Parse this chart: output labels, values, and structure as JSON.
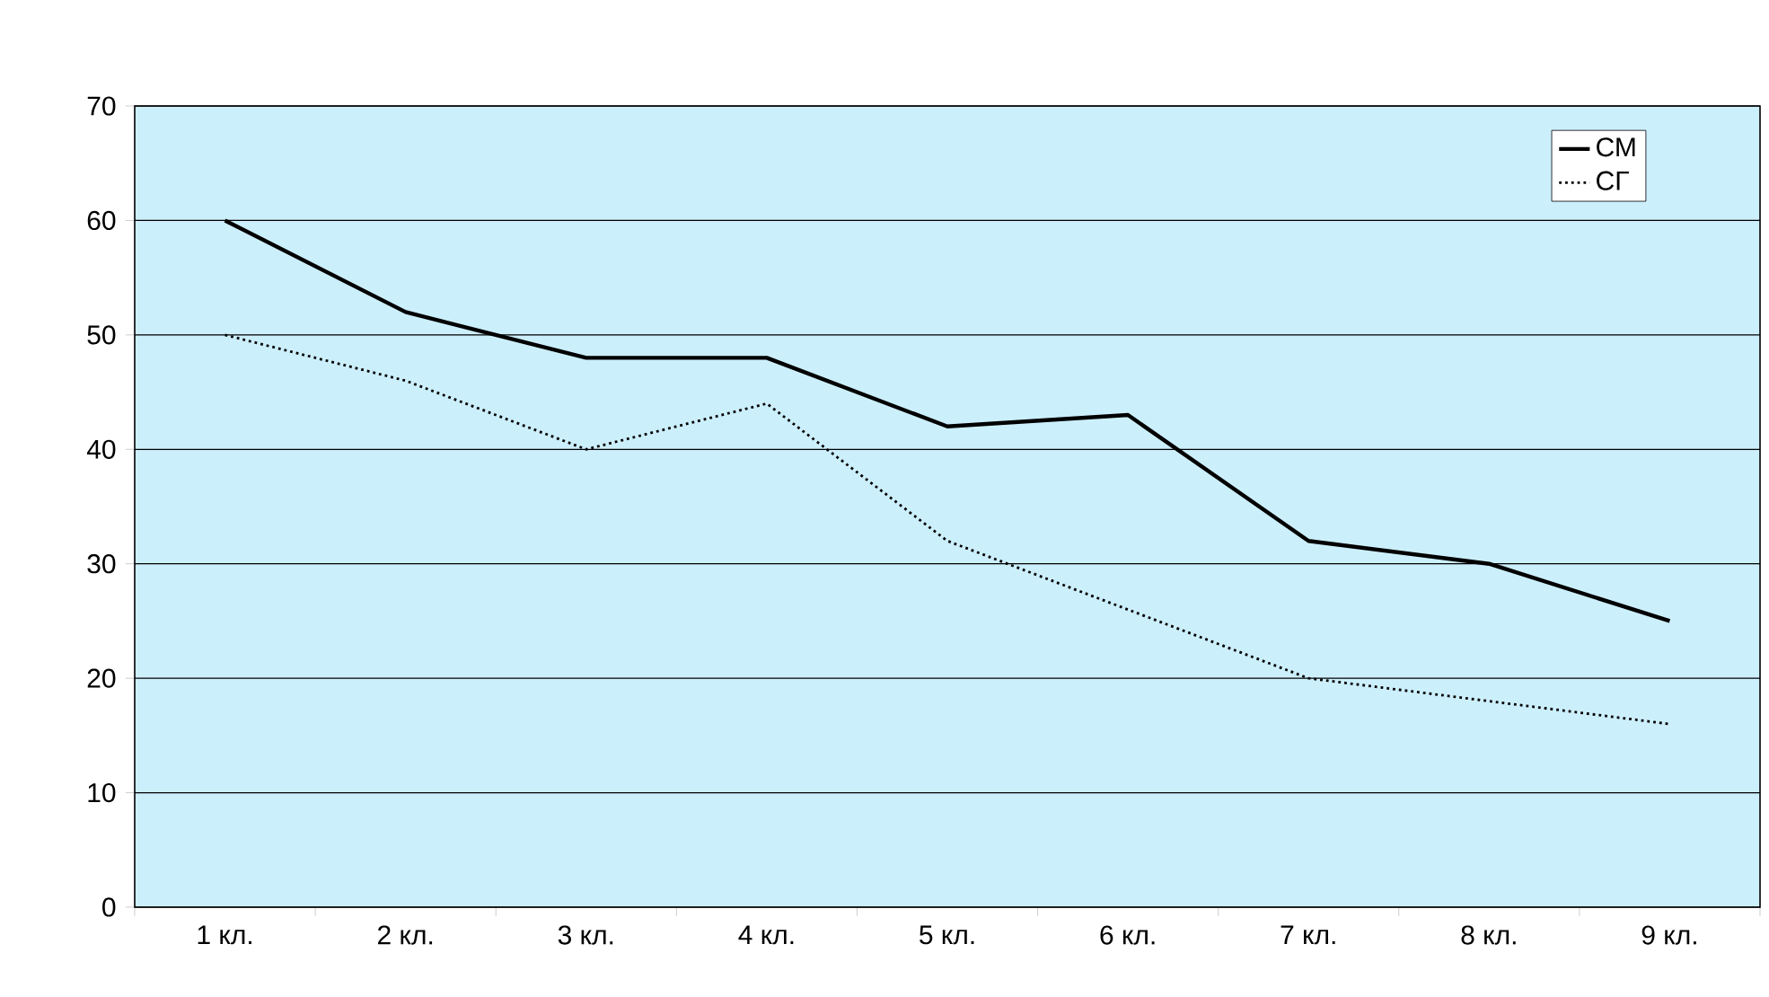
{
  "chart_data": {
    "type": "line",
    "categories": [
      "1 кл.",
      "2 кл.",
      "3 кл.",
      "4 кл.",
      "5 кл.",
      "6 кл.",
      "7 кл.",
      "8 кл.",
      "9 кл."
    ],
    "series": [
      {
        "name": "СМ",
        "color": "#000000",
        "line_style": "solid",
        "values": [
          60,
          52,
          48,
          48,
          42,
          43,
          32,
          30,
          25
        ]
      },
      {
        "name": "СГ",
        "color": "#000000",
        "line_style": "dotted",
        "values": [
          50,
          46,
          40,
          44,
          32,
          26,
          20,
          18,
          16
        ]
      }
    ],
    "ylim": [
      0,
      70
    ],
    "yticks": [
      0,
      10,
      20,
      30,
      40,
      50,
      60,
      70
    ],
    "grid": "y",
    "legend": "top right",
    "marker": "none"
  }
}
